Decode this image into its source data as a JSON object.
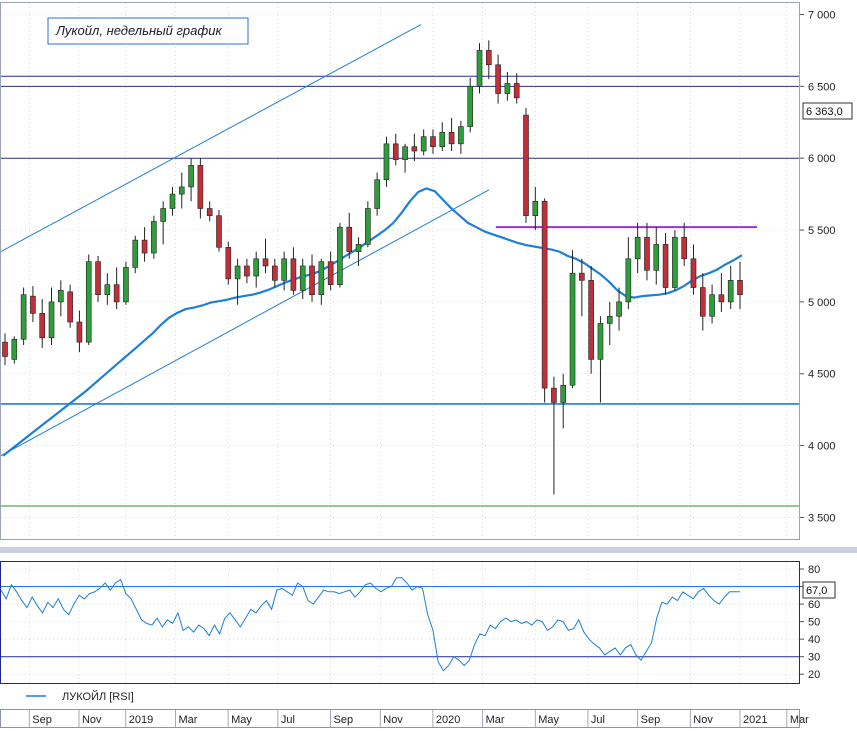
{
  "chart_data": [
    {
      "type": "candlestick",
      "title": "Лукойл, недельный график",
      "ylim": [
        3350,
        7080
      ],
      "y_ticks": [
        3500,
        4000,
        4500,
        5000,
        5500,
        6000,
        6500,
        7000
      ],
      "y_tick_labels": [
        "3 500",
        "4 000",
        "4 500",
        "5 000",
        "5 500",
        "6 000",
        "6 500",
        "7 000"
      ],
      "last_price_label": "6 363,0",
      "last_price": 6363,
      "horizontal_levels": [
        {
          "value": 6570,
          "color": "#2b2b8c"
        },
        {
          "value": 6500,
          "color": "#2b2b8c"
        },
        {
          "value": 6000,
          "color": "#2b2b8c"
        },
        {
          "value": 4290,
          "color": "#1e7fd6"
        },
        {
          "value": 3580,
          "color": "#2e8b2e"
        }
      ],
      "support_segment": {
        "from_week": 56,
        "to_week": 107,
        "value": 5520,
        "color": "#9b30d9"
      },
      "trend_lines": [
        {
          "from": [
            0,
            5350
          ],
          "to": [
            60,
            6930
          ],
          "color": "#1e7fd6"
        },
        {
          "from": [
            0,
            3930
          ],
          "to": [
            70,
            5780
          ],
          "color": "#1e7fd6"
        }
      ],
      "moving_average_color": "#1e7fd6",
      "moving_average": [
        3930,
        3975,
        4020,
        4065,
        4110,
        4155,
        4200,
        4245,
        4290,
        4335,
        4380,
        4430,
        4480,
        4530,
        4580,
        4630,
        4680,
        4730,
        4780,
        4840,
        4890,
        4925,
        4950,
        4960,
        4975,
        4995,
        5005,
        5015,
        5030,
        5040,
        5050,
        5065,
        5085,
        5110,
        5135,
        5155,
        5175,
        5190,
        5210,
        5240,
        5275,
        5310,
        5345,
        5380,
        5420,
        5460,
        5500,
        5550,
        5620,
        5700,
        5765,
        5790,
        5770,
        5710,
        5650,
        5600,
        5550,
        5520,
        5490,
        5470,
        5450,
        5430,
        5410,
        5395,
        5385,
        5375,
        5365,
        5350,
        5320,
        5300,
        5270,
        5230,
        5190,
        5140,
        5080,
        5040,
        5030,
        5040,
        5045,
        5050,
        5060,
        5080,
        5110,
        5150,
        5180,
        5200,
        5225,
        5260,
        5290,
        5325
      ],
      "candles": [
        {
          "o": 4720,
          "h": 4780,
          "l": 4560,
          "c": 4620
        },
        {
          "o": 4600,
          "h": 4760,
          "l": 4570,
          "c": 4740
        },
        {
          "o": 4740,
          "h": 5100,
          "l": 4700,
          "c": 5050
        },
        {
          "o": 5040,
          "h": 5110,
          "l": 4860,
          "c": 4920
        },
        {
          "o": 4920,
          "h": 5020,
          "l": 4680,
          "c": 4750
        },
        {
          "o": 4750,
          "h": 5100,
          "l": 4700,
          "c": 5000
        },
        {
          "o": 5000,
          "h": 5150,
          "l": 4900,
          "c": 5080
        },
        {
          "o": 5070,
          "h": 5120,
          "l": 4820,
          "c": 4860
        },
        {
          "o": 4860,
          "h": 4940,
          "l": 4650,
          "c": 4720
        },
        {
          "o": 4720,
          "h": 5330,
          "l": 4700,
          "c": 5280
        },
        {
          "o": 5280,
          "h": 5320,
          "l": 5000,
          "c": 5050
        },
        {
          "o": 5050,
          "h": 5200,
          "l": 4980,
          "c": 5120
        },
        {
          "o": 5120,
          "h": 5240,
          "l": 4950,
          "c": 5000
        },
        {
          "o": 5000,
          "h": 5280,
          "l": 4980,
          "c": 5240
        },
        {
          "o": 5240,
          "h": 5460,
          "l": 5200,
          "c": 5430
        },
        {
          "o": 5430,
          "h": 5520,
          "l": 5280,
          "c": 5340
        },
        {
          "o": 5340,
          "h": 5600,
          "l": 5300,
          "c": 5560
        },
        {
          "o": 5560,
          "h": 5700,
          "l": 5400,
          "c": 5650
        },
        {
          "o": 5650,
          "h": 5800,
          "l": 5600,
          "c": 5750
        },
        {
          "o": 5750,
          "h": 5900,
          "l": 5650,
          "c": 5800
        },
        {
          "o": 5800,
          "h": 6000,
          "l": 5700,
          "c": 5950
        },
        {
          "o": 5950,
          "h": 6000,
          "l": 5580,
          "c": 5650
        },
        {
          "o": 5650,
          "h": 5700,
          "l": 5560,
          "c": 5600
        },
        {
          "o": 5600,
          "h": 5640,
          "l": 5350,
          "c": 5380
        },
        {
          "o": 5380,
          "h": 5420,
          "l": 5120,
          "c": 5160
        },
        {
          "o": 5160,
          "h": 5300,
          "l": 4980,
          "c": 5250
        },
        {
          "o": 5250,
          "h": 5300,
          "l": 5130,
          "c": 5180
        },
        {
          "o": 5180,
          "h": 5350,
          "l": 5100,
          "c": 5300
        },
        {
          "o": 5300,
          "h": 5440,
          "l": 5200,
          "c": 5250
        },
        {
          "o": 5250,
          "h": 5300,
          "l": 5100,
          "c": 5150
        },
        {
          "o": 5150,
          "h": 5350,
          "l": 5080,
          "c": 5300
        },
        {
          "o": 5300,
          "h": 5380,
          "l": 5050,
          "c": 5080
        },
        {
          "o": 5080,
          "h": 5300,
          "l": 5020,
          "c": 5250
        },
        {
          "o": 5250,
          "h": 5330,
          "l": 5000,
          "c": 5050
        },
        {
          "o": 5050,
          "h": 5300,
          "l": 4980,
          "c": 5280
        },
        {
          "o": 5280,
          "h": 5350,
          "l": 5080,
          "c": 5120
        },
        {
          "o": 5120,
          "h": 5550,
          "l": 5100,
          "c": 5520
        },
        {
          "o": 5520,
          "h": 5620,
          "l": 5300,
          "c": 5350
        },
        {
          "o": 5350,
          "h": 5450,
          "l": 5250,
          "c": 5400
        },
        {
          "o": 5400,
          "h": 5700,
          "l": 5380,
          "c": 5650
        },
        {
          "o": 5650,
          "h": 5900,
          "l": 5600,
          "c": 5850
        },
        {
          "o": 5850,
          "h": 6150,
          "l": 5800,
          "c": 6100
        },
        {
          "o": 6100,
          "h": 6170,
          "l": 5950,
          "c": 5990
        },
        {
          "o": 5990,
          "h": 6100,
          "l": 5900,
          "c": 6080
        },
        {
          "o": 6080,
          "h": 6170,
          "l": 5980,
          "c": 6050
        },
        {
          "o": 6050,
          "h": 6200,
          "l": 6020,
          "c": 6150
        },
        {
          "o": 6150,
          "h": 6200,
          "l": 6030,
          "c": 6080
        },
        {
          "o": 6080,
          "h": 6250,
          "l": 6050,
          "c": 6180
        },
        {
          "o": 6180,
          "h": 6280,
          "l": 6050,
          "c": 6100
        },
        {
          "o": 6100,
          "h": 6260,
          "l": 6030,
          "c": 6220
        },
        {
          "o": 6220,
          "h": 6560,
          "l": 6180,
          "c": 6500
        },
        {
          "o": 6500,
          "h": 6800,
          "l": 6450,
          "c": 6750
        },
        {
          "o": 6750,
          "h": 6820,
          "l": 6550,
          "c": 6650
        },
        {
          "o": 6650,
          "h": 6720,
          "l": 6380,
          "c": 6450
        },
        {
          "o": 6450,
          "h": 6600,
          "l": 6400,
          "c": 6520
        },
        {
          "o": 6520,
          "h": 6590,
          "l": 6380,
          "c": 6420
        },
        {
          "o": 6300,
          "h": 6350,
          "l": 5550,
          "c": 5600
        },
        {
          "o": 5600,
          "h": 5800,
          "l": 5500,
          "c": 5700
        },
        {
          "o": 5700,
          "h": 5720,
          "l": 4300,
          "c": 4400
        },
        {
          "o": 4400,
          "h": 4480,
          "l": 3660,
          "c": 4300
        },
        {
          "o": 4300,
          "h": 4500,
          "l": 4120,
          "c": 4420
        },
        {
          "o": 4420,
          "h": 5360,
          "l": 4400,
          "c": 5200
        },
        {
          "o": 5200,
          "h": 5300,
          "l": 4900,
          "c": 5150
        },
        {
          "o": 5150,
          "h": 5250,
          "l": 4500,
          "c": 4600
        },
        {
          "o": 4600,
          "h": 4900,
          "l": 4300,
          "c": 4850
        },
        {
          "o": 4850,
          "h": 5000,
          "l": 4700,
          "c": 4900
        },
        {
          "o": 4900,
          "h": 5100,
          "l": 4800,
          "c": 5000
        },
        {
          "o": 5000,
          "h": 5450,
          "l": 4950,
          "c": 5300
        },
        {
          "o": 5300,
          "h": 5550,
          "l": 5200,
          "c": 5450
        },
        {
          "o": 5450,
          "h": 5550,
          "l": 5150,
          "c": 5220
        },
        {
          "o": 5220,
          "h": 5520,
          "l": 5120,
          "c": 5400
        },
        {
          "o": 5400,
          "h": 5480,
          "l": 5050,
          "c": 5100
        },
        {
          "o": 5100,
          "h": 5500,
          "l": 5080,
          "c": 5450
        },
        {
          "o": 5450,
          "h": 5550,
          "l": 5250,
          "c": 5300
        },
        {
          "o": 5300,
          "h": 5400,
          "l": 5050,
          "c": 5100
        },
        {
          "o": 5100,
          "h": 5200,
          "l": 4800,
          "c": 4900
        },
        {
          "o": 4900,
          "h": 5120,
          "l": 4850,
          "c": 5050
        },
        {
          "o": 5050,
          "h": 5200,
          "l": 4930,
          "c": 5000
        },
        {
          "o": 5000,
          "h": 5250,
          "l": 4950,
          "c": 5150
        },
        {
          "o": 5150,
          "h": 5280,
          "l": 4950,
          "c": 5050
        }
      ],
      "rsi": {
        "label": "ЛУКОЙЛ [RSI]",
        "ylim": [
          15,
          84
        ],
        "y_ticks": [
          20,
          30,
          40,
          50,
          60,
          70,
          80
        ],
        "y_tick_labels": [
          "20",
          "30",
          "40",
          "50",
          "60",
          "70",
          "80"
        ],
        "levels": [
          70,
          30
        ],
        "last_value_label": "67,0",
        "values": [
          68,
          63,
          71,
          67,
          62,
          58,
          64,
          59,
          55,
          61,
          58,
          63,
          57,
          54,
          60,
          65,
          63,
          66,
          67,
          69,
          72,
          68,
          72,
          74,
          66,
          63,
          57,
          51,
          49,
          48,
          52,
          47,
          51,
          49,
          55,
          45,
          47,
          44,
          48,
          46,
          42,
          48,
          43,
          52,
          55,
          51,
          47,
          52,
          57,
          55,
          59,
          62,
          57,
          68,
          69,
          67,
          65,
          72,
          70,
          62,
          60,
          64,
          68,
          67,
          67,
          66,
          67,
          68,
          64,
          67,
          71,
          72,
          69,
          67,
          69,
          70,
          75,
          75,
          72,
          68,
          70,
          69,
          54,
          45,
          27,
          22,
          25,
          30,
          28,
          25,
          28,
          37,
          43,
          42,
          48,
          46,
          50,
          52,
          50,
          51,
          49,
          50,
          48,
          51,
          50,
          45,
          47,
          51,
          50,
          45,
          46,
          51,
          44,
          40,
          37,
          35,
          31,
          33,
          35,
          31,
          35,
          37,
          31,
          28,
          33,
          38,
          52,
          61,
          60,
          64,
          62,
          67,
          65,
          63,
          67,
          69,
          65,
          62,
          60,
          64,
          67,
          67,
          67
        ]
      },
      "x_labels": [
        "Sep",
        "Nov",
        "2019",
        "Mar",
        "May",
        "Jul",
        "Sep",
        "Nov",
        "2020",
        "Mar",
        "May",
        "Jul",
        "Sep",
        "Nov",
        "2021",
        "Mar"
      ],
      "x_label_positions": [
        5,
        13.5,
        21.5,
        30,
        39,
        47.5,
        56.5,
        65,
        74,
        82.5,
        91.5,
        100.5,
        109,
        118,
        126.5,
        134.5
      ]
    }
  ]
}
